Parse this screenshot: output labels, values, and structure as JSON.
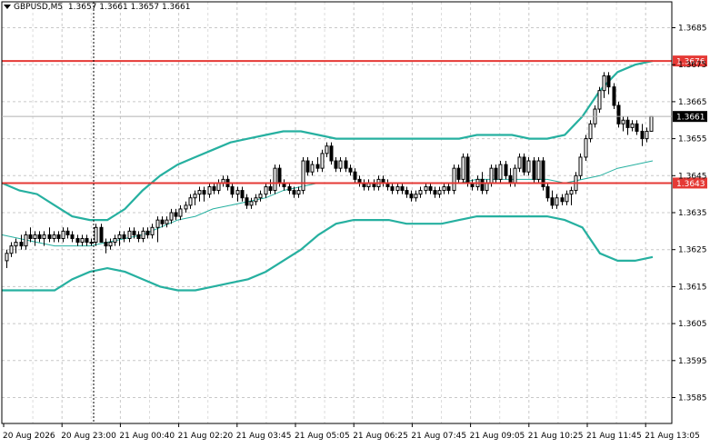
{
  "header": {
    "symbol": "GBPUSD,M5",
    "ohlc": "1.3657 1.3661 1.3657 1.3661"
  },
  "chart_data": {
    "type": "candlestick",
    "title": "GBPUSD,M5",
    "ylim": [
      1.3578,
      1.3692
    ],
    "y_ticks": [
      "1.3685",
      "1.3675",
      "1.3665",
      "1.3655",
      "1.3645",
      "1.3635",
      "1.3625",
      "1.3615",
      "1.3605",
      "1.3595",
      "1.3585"
    ],
    "x_ticks": [
      "20 Aug 2026",
      "20 Aug 23:00",
      "21 Aug 00:40",
      "21 Aug 02:20",
      "21 Aug 03:45",
      "21 Aug 05:05",
      "21 Aug 06:25",
      "21 Aug 07:45",
      "21 Aug 09:05",
      "21 Aug 10:25",
      "21 Aug 11:45",
      "21 Aug 13:05"
    ],
    "grid": true,
    "current_price": "1.3661",
    "levels": [
      {
        "label": "1.3676",
        "value": 1.3676,
        "color": "#e53935"
      },
      {
        "label": "1.3643",
        "value": 1.3643,
        "color": "#e53935"
      }
    ],
    "crosshair_x_category": "20 Aug 23:00",
    "candles": [
      [
        1.3622,
        1.3625,
        1.362,
        1.3624
      ],
      [
        1.3624,
        1.3627,
        1.3623,
        1.3626
      ],
      [
        1.3626,
        1.3628,
        1.3624,
        1.3627
      ],
      [
        1.3627,
        1.3629,
        1.3625,
        1.3626
      ],
      [
        1.3626,
        1.363,
        1.3625,
        1.3629
      ],
      [
        1.3629,
        1.3631,
        1.3627,
        1.3628
      ],
      [
        1.3628,
        1.363,
        1.3626,
        1.3629
      ],
      [
        1.3629,
        1.363,
        1.3627,
        1.3628
      ],
      [
        1.3628,
        1.363,
        1.3626,
        1.3629
      ],
      [
        1.3629,
        1.3631,
        1.3627,
        1.3628
      ],
      [
        1.3628,
        1.363,
        1.3627,
        1.3629
      ],
      [
        1.3629,
        1.363,
        1.3627,
        1.3628
      ],
      [
        1.3628,
        1.3631,
        1.3627,
        1.363
      ],
      [
        1.363,
        1.3631,
        1.3628,
        1.3629
      ],
      [
        1.3629,
        1.363,
        1.3627,
        1.3628
      ],
      [
        1.3628,
        1.3629,
        1.3626,
        1.3627
      ],
      [
        1.3627,
        1.3629,
        1.3626,
        1.3628
      ],
      [
        1.3628,
        1.3629,
        1.3626,
        1.3627
      ],
      [
        1.3627,
        1.3628,
        1.3626,
        1.3627
      ],
      [
        1.3627,
        1.3632,
        1.3626,
        1.3631
      ],
      [
        1.3631,
        1.3632,
        1.3627,
        1.3627
      ],
      [
        1.3627,
        1.3628,
        1.3624,
        1.3626
      ],
      [
        1.3626,
        1.3628,
        1.3625,
        1.3627
      ],
      [
        1.3627,
        1.3629,
        1.3626,
        1.3628
      ],
      [
        1.3628,
        1.363,
        1.3626,
        1.3629
      ],
      [
        1.3629,
        1.363,
        1.3627,
        1.3628
      ],
      [
        1.3628,
        1.3631,
        1.3627,
        1.363
      ],
      [
        1.363,
        1.3631,
        1.3628,
        1.3629
      ],
      [
        1.3629,
        1.363,
        1.3627,
        1.3628
      ],
      [
        1.3628,
        1.3631,
        1.3627,
        1.363
      ],
      [
        1.363,
        1.3631,
        1.3628,
        1.3629
      ],
      [
        1.3629,
        1.3632,
        1.3628,
        1.3631
      ],
      [
        1.3631,
        1.3634,
        1.3627,
        1.3633
      ],
      [
        1.3633,
        1.3634,
        1.3631,
        1.3632
      ],
      [
        1.3632,
        1.3634,
        1.3631,
        1.3633
      ],
      [
        1.3633,
        1.3636,
        1.3632,
        1.3635
      ],
      [
        1.3635,
        1.3636,
        1.3633,
        1.3634
      ],
      [
        1.3634,
        1.3637,
        1.3633,
        1.3636
      ],
      [
        1.3636,
        1.3638,
        1.3635,
        1.3637
      ],
      [
        1.3637,
        1.364,
        1.3636,
        1.3639
      ],
      [
        1.3639,
        1.3641,
        1.3637,
        1.364
      ],
      [
        1.364,
        1.3642,
        1.3638,
        1.3641
      ],
      [
        1.3641,
        1.3642,
        1.3638,
        1.364
      ],
      [
        1.364,
        1.3643,
        1.3639,
        1.3642
      ],
      [
        1.3642,
        1.3643,
        1.364,
        1.3641
      ],
      [
        1.3641,
        1.3644,
        1.364,
        1.3643
      ],
      [
        1.3643,
        1.3645,
        1.3642,
        1.3644
      ],
      [
        1.3644,
        1.3645,
        1.3641,
        1.3642
      ],
      [
        1.3642,
        1.3643,
        1.3639,
        1.364
      ],
      [
        1.364,
        1.3642,
        1.3638,
        1.3641
      ],
      [
        1.3641,
        1.3642,
        1.3638,
        1.3639
      ],
      [
        1.3639,
        1.364,
        1.3636,
        1.3637
      ],
      [
        1.3637,
        1.3639,
        1.3636,
        1.3638
      ],
      [
        1.3638,
        1.364,
        1.3637,
        1.3639
      ],
      [
        1.3639,
        1.3641,
        1.3638,
        1.364
      ],
      [
        1.364,
        1.3643,
        1.3639,
        1.3642
      ],
      [
        1.3642,
        1.3644,
        1.364,
        1.3641
      ],
      [
        1.3641,
        1.3648,
        1.364,
        1.3647
      ],
      [
        1.3647,
        1.3648,
        1.3642,
        1.3643
      ],
      [
        1.3643,
        1.3644,
        1.3641,
        1.3642
      ],
      [
        1.3642,
        1.3643,
        1.364,
        1.3641
      ],
      [
        1.3641,
        1.3642,
        1.3639,
        1.364
      ],
      [
        1.364,
        1.3642,
        1.3639,
        1.3641
      ],
      [
        1.3641,
        1.365,
        1.364,
        1.3649
      ],
      [
        1.3649,
        1.365,
        1.3645,
        1.3646
      ],
      [
        1.3646,
        1.3649,
        1.3645,
        1.3648
      ],
      [
        1.3648,
        1.365,
        1.3646,
        1.3647
      ],
      [
        1.3647,
        1.3652,
        1.3646,
        1.3651
      ],
      [
        1.3651,
        1.3654,
        1.365,
        1.3653
      ],
      [
        1.3653,
        1.3654,
        1.3648,
        1.3649
      ],
      [
        1.3649,
        1.365,
        1.3646,
        1.3647
      ],
      [
        1.3647,
        1.365,
        1.3646,
        1.3649
      ],
      [
        1.3649,
        1.365,
        1.3646,
        1.3647
      ],
      [
        1.3647,
        1.3648,
        1.3645,
        1.3646
      ],
      [
        1.3646,
        1.3647,
        1.3643,
        1.3644
      ],
      [
        1.3644,
        1.3645,
        1.3642,
        1.3643
      ],
      [
        1.3643,
        1.3644,
        1.3641,
        1.3642
      ],
      [
        1.3642,
        1.3644,
        1.3641,
        1.3643
      ],
      [
        1.3643,
        1.3644,
        1.3641,
        1.3642
      ],
      [
        1.3642,
        1.3645,
        1.3641,
        1.3644
      ],
      [
        1.3644,
        1.3645,
        1.3642,
        1.3643
      ],
      [
        1.3643,
        1.3644,
        1.3641,
        1.3642
      ],
      [
        1.3642,
        1.3643,
        1.364,
        1.3641
      ],
      [
        1.3641,
        1.3643,
        1.364,
        1.3642
      ],
      [
        1.3642,
        1.3643,
        1.364,
        1.3641
      ],
      [
        1.3641,
        1.3642,
        1.3639,
        1.364
      ],
      [
        1.364,
        1.3641,
        1.3638,
        1.3639
      ],
      [
        1.3639,
        1.3641,
        1.3638,
        1.364
      ],
      [
        1.364,
        1.3642,
        1.3639,
        1.3641
      ],
      [
        1.3641,
        1.3643,
        1.364,
        1.3642
      ],
      [
        1.3642,
        1.3643,
        1.364,
        1.3641
      ],
      [
        1.3641,
        1.3642,
        1.3639,
        1.364
      ],
      [
        1.364,
        1.3642,
        1.3639,
        1.3641
      ],
      [
        1.3641,
        1.3643,
        1.364,
        1.3642
      ],
      [
        1.3642,
        1.3643,
        1.364,
        1.3641
      ],
      [
        1.3641,
        1.3648,
        1.364,
        1.3647
      ],
      [
        1.3647,
        1.3648,
        1.3643,
        1.3644
      ],
      [
        1.3644,
        1.3651,
        1.3643,
        1.365
      ],
      [
        1.365,
        1.3651,
        1.3642,
        1.3643
      ],
      [
        1.3643,
        1.3644,
        1.3641,
        1.3642
      ],
      [
        1.3642,
        1.3645,
        1.3641,
        1.3644
      ],
      [
        1.3644,
        1.3646,
        1.364,
        1.3641
      ],
      [
        1.3641,
        1.3644,
        1.364,
        1.3643
      ],
      [
        1.3643,
        1.3648,
        1.3642,
        1.3647
      ],
      [
        1.3647,
        1.3648,
        1.3643,
        1.3644
      ],
      [
        1.3644,
        1.3649,
        1.3643,
        1.3648
      ],
      [
        1.3648,
        1.3649,
        1.3644,
        1.3645
      ],
      [
        1.3645,
        1.3647,
        1.3642,
        1.3643
      ],
      [
        1.3643,
        1.3648,
        1.3642,
        1.3647
      ],
      [
        1.3647,
        1.3651,
        1.3646,
        1.365
      ],
      [
        1.365,
        1.3651,
        1.3645,
        1.3646
      ],
      [
        1.3646,
        1.365,
        1.3645,
        1.3649
      ],
      [
        1.3649,
        1.365,
        1.3643,
        1.3644
      ],
      [
        1.3644,
        1.365,
        1.3643,
        1.3649
      ],
      [
        1.3649,
        1.365,
        1.3641,
        1.3642
      ],
      [
        1.3642,
        1.3643,
        1.3638,
        1.3639
      ],
      [
        1.3639,
        1.3641,
        1.3636,
        1.3637
      ],
      [
        1.3637,
        1.364,
        1.3636,
        1.3639
      ],
      [
        1.3639,
        1.364,
        1.3637,
        1.3638
      ],
      [
        1.3638,
        1.3641,
        1.3637,
        1.364
      ],
      [
        1.364,
        1.3642,
        1.3637,
        1.3641
      ],
      [
        1.3641,
        1.3646,
        1.364,
        1.3645
      ],
      [
        1.3645,
        1.3651,
        1.3644,
        1.365
      ],
      [
        1.365,
        1.3656,
        1.3649,
        1.3655
      ],
      [
        1.3655,
        1.366,
        1.3654,
        1.3659
      ],
      [
        1.3659,
        1.3664,
        1.3658,
        1.3663
      ],
      [
        1.3663,
        1.3669,
        1.3662,
        1.3668
      ],
      [
        1.3668,
        1.3673,
        1.3666,
        1.3672
      ],
      [
        1.3672,
        1.3673,
        1.3667,
        1.3669
      ],
      [
        1.3669,
        1.367,
        1.3663,
        1.3664
      ],
      [
        1.3664,
        1.3665,
        1.3658,
        1.3659
      ],
      [
        1.3659,
        1.3661,
        1.3657,
        1.366
      ],
      [
        1.366,
        1.3661,
        1.3656,
        1.3658
      ],
      [
        1.3658,
        1.366,
        1.3657,
        1.3659
      ],
      [
        1.3659,
        1.366,
        1.3656,
        1.3657
      ],
      [
        1.3657,
        1.3659,
        1.3653,
        1.3655
      ],
      [
        1.3655,
        1.3658,
        1.3654,
        1.3657
      ],
      [
        1.3657,
        1.3661,
        1.3657,
        1.3661
      ]
    ],
    "series": [
      {
        "kind": "bollinger-upper",
        "color": "#26b0a0",
        "values": [
          1.3643,
          1.3641,
          1.364,
          1.3637,
          1.3634,
          1.3633,
          1.3633,
          1.3636,
          1.3641,
          1.3645,
          1.3648,
          1.365,
          1.3652,
          1.3654,
          1.3655,
          1.3656,
          1.3657,
          1.3657,
          1.3656,
          1.3655,
          1.3655,
          1.3655,
          1.3655,
          1.3655,
          1.3655,
          1.3655,
          1.3655,
          1.3656,
          1.3656,
          1.3656,
          1.3655,
          1.3655,
          1.3656,
          1.3661,
          1.3668,
          1.3673,
          1.3675,
          1.3676
        ]
      },
      {
        "kind": "bollinger-middle",
        "color": "#26b0a0",
        "values": [
          1.3629,
          1.3628,
          1.3627,
          1.3626,
          1.3626,
          1.3626,
          1.3627,
          1.3628,
          1.3629,
          1.3631,
          1.3633,
          1.3634,
          1.3636,
          1.3637,
          1.3638,
          1.3639,
          1.3641,
          1.3642,
          1.3643,
          1.3643,
          1.3643,
          1.3643,
          1.3643,
          1.3643,
          1.3643,
          1.3643,
          1.3643,
          1.3644,
          1.3644,
          1.3644,
          1.3644,
          1.3644,
          1.3643,
          1.3644,
          1.3645,
          1.3647,
          1.3648,
          1.3649
        ]
      },
      {
        "kind": "bollinger-lower",
        "color": "#26b0a0",
        "values": [
          1.3614,
          1.3614,
          1.3614,
          1.3614,
          1.3617,
          1.3619,
          1.362,
          1.3619,
          1.3617,
          1.3615,
          1.3614,
          1.3614,
          1.3615,
          1.3616,
          1.3617,
          1.3619,
          1.3622,
          1.3625,
          1.3629,
          1.3632,
          1.3633,
          1.3633,
          1.3633,
          1.3632,
          1.3632,
          1.3632,
          1.3633,
          1.3634,
          1.3634,
          1.3634,
          1.3634,
          1.3634,
          1.3633,
          1.3631,
          1.3624,
          1.3622,
          1.3622,
          1.3623
        ]
      }
    ]
  }
}
